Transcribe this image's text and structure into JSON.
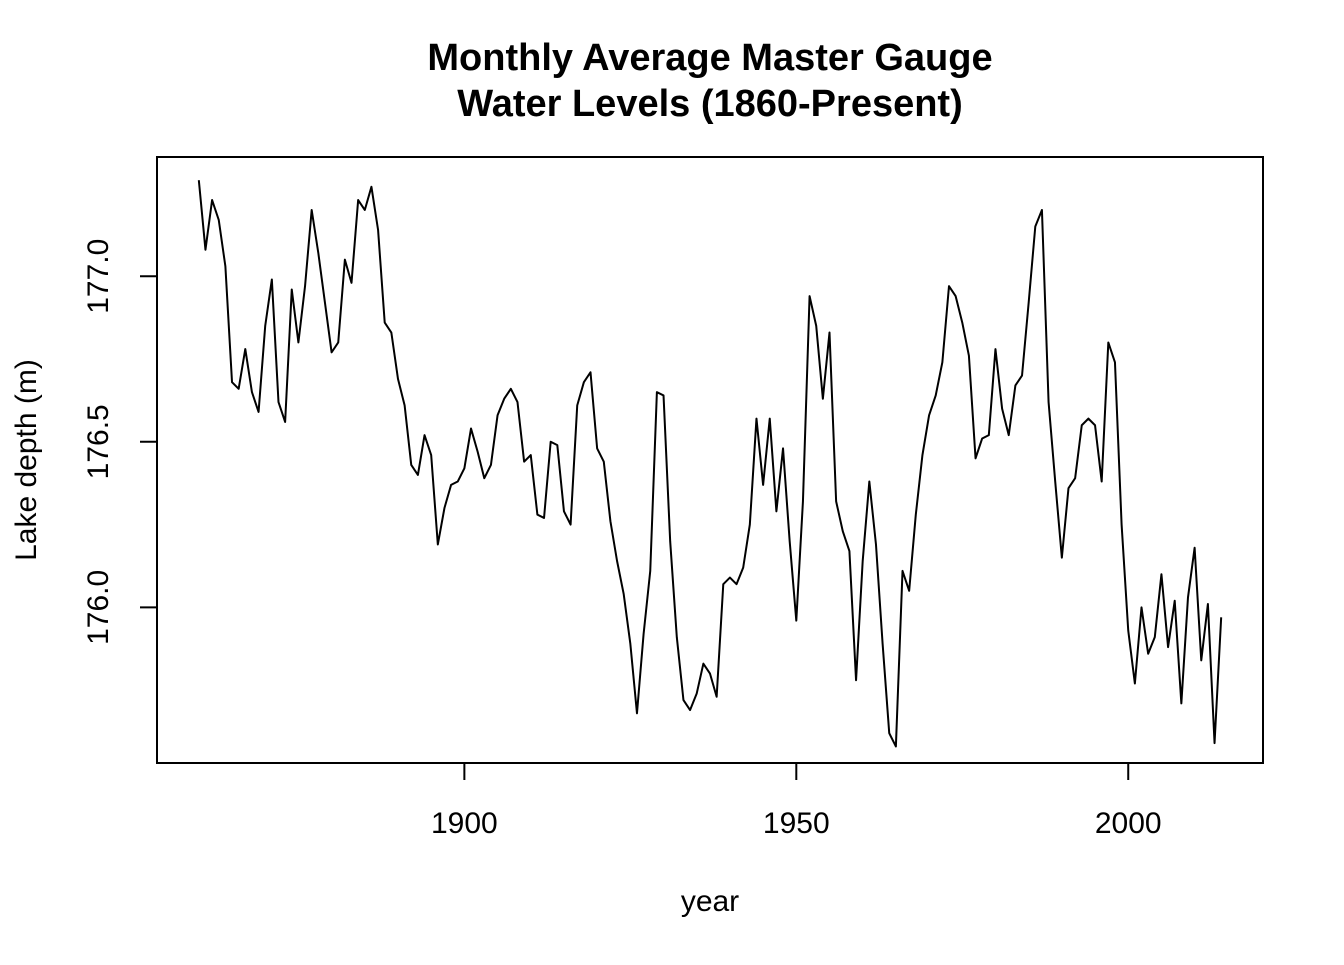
{
  "chart_data": {
    "type": "line",
    "title": [
      "Monthly Average Master Gauge",
      "Water Levels (1860-Present)"
    ],
    "xlabel": "year",
    "ylabel": "Lake depth (m)",
    "xlim": [
      1853.7,
      2020.3
    ],
    "ylim": [
      175.53,
      177.36
    ],
    "xticks": [
      1900,
      1950,
      2000
    ],
    "xtick_labels": [
      "1900",
      "1950",
      "2000"
    ],
    "yticks": [
      176.0,
      176.5,
      177.0
    ],
    "ytick_labels": [
      "176.0",
      "176.5",
      "177.0"
    ],
    "grid": false,
    "legend": "none",
    "line_color": "#000000",
    "series": [
      {
        "x": [
          1860,
          1861,
          1862,
          1863,
          1864,
          1865,
          1866,
          1867,
          1868,
          1869,
          1870,
          1871,
          1872,
          1873,
          1874,
          1875,
          1876,
          1877,
          1878,
          1879,
          1880,
          1881,
          1882,
          1883,
          1884,
          1885,
          1886,
          1887,
          1888,
          1889,
          1890,
          1891,
          1892,
          1893,
          1894,
          1895,
          1896,
          1897,
          1898,
          1899,
          1900,
          1901,
          1902,
          1903,
          1904,
          1905,
          1906,
          1907,
          1908,
          1909,
          1910,
          1911,
          1912,
          1913,
          1914,
          1915,
          1916,
          1917,
          1918,
          1919,
          1920,
          1921,
          1922,
          1923,
          1924,
          1925,
          1926,
          1927,
          1928,
          1929,
          1930,
          1931,
          1932,
          1933,
          1934,
          1935,
          1936,
          1937,
          1938,
          1939,
          1940,
          1941,
          1942,
          1943,
          1944,
          1945,
          1946,
          1947,
          1948,
          1949,
          1950,
          1951,
          1952,
          1953,
          1954,
          1955,
          1956,
          1957,
          1958,
          1959,
          1960,
          1961,
          1962,
          1963,
          1964,
          1965,
          1966,
          1967,
          1968,
          1969,
          1970,
          1971,
          1972,
          1973,
          1974,
          1975,
          1976,
          1977,
          1978,
          1979,
          1980,
          1981,
          1982,
          1983,
          1984,
          1985,
          1986,
          1987,
          1988,
          1989,
          1990,
          1991,
          1992,
          1993,
          1994,
          1995,
          1996,
          1997,
          1998,
          1999,
          2000,
          2001,
          2002,
          2003,
          2004,
          2005,
          2006,
          2007,
          2008,
          2009,
          2010,
          2011,
          2012,
          2013,
          2014
        ],
        "values": [
          177.29,
          177.08,
          177.23,
          177.17,
          177.03,
          176.68,
          176.66,
          176.78,
          176.65,
          176.59,
          176.85,
          176.99,
          176.62,
          176.56,
          176.96,
          176.8,
          176.97,
          177.2,
          177.07,
          176.92,
          176.77,
          176.8,
          177.05,
          176.98,
          177.23,
          177.2,
          177.27,
          177.14,
          176.86,
          176.83,
          176.69,
          176.61,
          176.43,
          176.4,
          176.52,
          176.46,
          176.19,
          176.3,
          176.37,
          176.38,
          176.42,
          176.54,
          176.47,
          176.39,
          176.43,
          176.58,
          176.63,
          176.66,
          176.62,
          176.44,
          176.46,
          176.28,
          176.27,
          176.5,
          176.49,
          176.29,
          176.25,
          176.61,
          176.68,
          176.71,
          176.48,
          176.44,
          176.26,
          176.14,
          176.04,
          175.89,
          175.68,
          175.92,
          176.11,
          176.65,
          176.64,
          176.2,
          175.91,
          175.72,
          175.69,
          175.74,
          175.83,
          175.8,
          175.73,
          176.07,
          176.09,
          176.07,
          176.12,
          176.25,
          176.57,
          176.37,
          176.57,
          176.29,
          176.48,
          176.2,
          175.96,
          176.32,
          176.94,
          176.85,
          176.63,
          176.83,
          176.32,
          176.23,
          176.17,
          175.78,
          176.14,
          176.38,
          176.19,
          175.89,
          175.62,
          175.58,
          176.11,
          176.05,
          176.28,
          176.46,
          176.58,
          176.64,
          176.74,
          176.97,
          176.94,
          176.86,
          176.76,
          176.45,
          176.51,
          176.52,
          176.78,
          176.6,
          176.52,
          176.67,
          176.7,
          176.92,
          177.15,
          177.2,
          176.62,
          176.38,
          176.15,
          176.36,
          176.39,
          176.55,
          176.57,
          176.55,
          176.38,
          176.8,
          176.74,
          176.25,
          175.93,
          175.77,
          176.0,
          175.86,
          175.91,
          176.1,
          175.88,
          176.02,
          175.71,
          176.03,
          176.18,
          175.84,
          176.01,
          175.59,
          175.97
        ]
      }
    ]
  }
}
